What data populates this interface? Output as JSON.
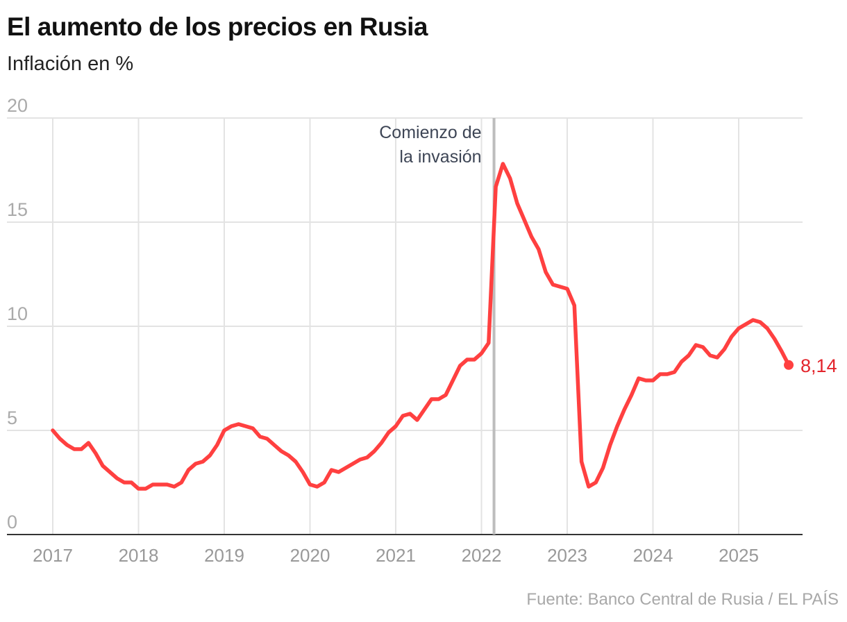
{
  "title": "El aumento de los precios en Rusia",
  "subtitle": "Inflación en %",
  "source": "Fuente: Banco Central de Rusia / EL PAÍS",
  "chart_data": {
    "type": "line",
    "title": "El aumento de los precios en Rusia",
    "ylabel": "Inflación en %",
    "xlabel": "",
    "ylim": [
      0,
      20
    ],
    "yticks": [
      0,
      5,
      10,
      15,
      20
    ],
    "xticks": [
      "2017",
      "2018",
      "2019",
      "2020",
      "2021",
      "2022",
      "2023",
      "2024",
      "2025"
    ],
    "grid": true,
    "line_color": "#ff4040",
    "label_color": "#e3242b",
    "x": [
      "2017-01",
      "2017-02",
      "2017-03",
      "2017-04",
      "2017-05",
      "2017-06",
      "2017-07",
      "2017-08",
      "2017-09",
      "2017-10",
      "2017-11",
      "2017-12",
      "2018-01",
      "2018-02",
      "2018-03",
      "2018-04",
      "2018-05",
      "2018-06",
      "2018-07",
      "2018-08",
      "2018-09",
      "2018-10",
      "2018-11",
      "2018-12",
      "2019-01",
      "2019-02",
      "2019-03",
      "2019-04",
      "2019-05",
      "2019-06",
      "2019-07",
      "2019-08",
      "2019-09",
      "2019-10",
      "2019-11",
      "2019-12",
      "2020-01",
      "2020-02",
      "2020-03",
      "2020-04",
      "2020-05",
      "2020-06",
      "2020-07",
      "2020-08",
      "2020-09",
      "2020-10",
      "2020-11",
      "2020-12",
      "2021-01",
      "2021-02",
      "2021-03",
      "2021-04",
      "2021-05",
      "2021-06",
      "2021-07",
      "2021-08",
      "2021-09",
      "2021-10",
      "2021-11",
      "2021-12",
      "2022-01",
      "2022-02",
      "2022-03",
      "2022-04",
      "2022-05",
      "2022-06",
      "2022-07",
      "2022-08",
      "2022-09",
      "2022-10",
      "2022-11",
      "2022-12",
      "2023-01",
      "2023-02",
      "2023-03",
      "2023-04",
      "2023-05",
      "2023-06",
      "2023-07",
      "2023-08",
      "2023-09",
      "2023-10",
      "2023-11",
      "2023-12",
      "2024-01",
      "2024-02",
      "2024-03",
      "2024-04",
      "2024-05",
      "2024-06",
      "2024-07",
      "2024-08",
      "2024-09",
      "2024-10",
      "2024-11",
      "2024-12",
      "2025-01",
      "2025-02",
      "2025-03",
      "2025-04",
      "2025-05",
      "2025-06",
      "2025-07",
      "2025-08"
    ],
    "values": [
      5.0,
      4.6,
      4.3,
      4.1,
      4.1,
      4.4,
      3.9,
      3.3,
      3.0,
      2.7,
      2.5,
      2.5,
      2.2,
      2.2,
      2.4,
      2.4,
      2.4,
      2.3,
      2.5,
      3.1,
      3.4,
      3.5,
      3.8,
      4.3,
      5.0,
      5.2,
      5.3,
      5.2,
      5.1,
      4.7,
      4.6,
      4.3,
      4.0,
      3.8,
      3.5,
      3.0,
      2.4,
      2.3,
      2.5,
      3.1,
      3.0,
      3.2,
      3.4,
      3.6,
      3.7,
      4.0,
      4.4,
      4.9,
      5.2,
      5.7,
      5.8,
      5.5,
      6.0,
      6.5,
      6.5,
      6.7,
      7.4,
      8.1,
      8.4,
      8.4,
      8.7,
      9.2,
      16.7,
      17.8,
      17.1,
      15.9,
      15.1,
      14.3,
      13.7,
      12.6,
      12.0,
      11.9,
      11.8,
      11.0,
      3.5,
      2.3,
      2.5,
      3.2,
      4.3,
      5.2,
      6.0,
      6.7,
      7.5,
      7.4,
      7.4,
      7.7,
      7.7,
      7.8,
      8.3,
      8.6,
      9.1,
      9.0,
      8.6,
      8.5,
      8.9,
      9.5,
      9.9,
      10.1,
      10.3,
      10.2,
      9.9,
      9.4,
      8.8,
      8.14
    ],
    "end_label": "8,14",
    "annotation": {
      "date": "2022-02-24",
      "text_line1": "Comienzo de",
      "text_line2": "la invasión"
    }
  }
}
